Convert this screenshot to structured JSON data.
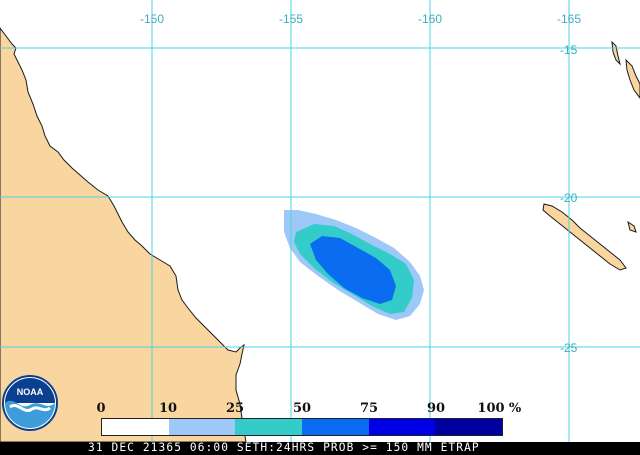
{
  "map": {
    "land_color": "#f9d5a0",
    "ocean_color": "#ffffff",
    "grid_color": "#4fd3e0",
    "longitude_labels": [
      "-150",
      "-155",
      "-160",
      "-165"
    ],
    "latitude_labels": [
      "-15",
      "-20",
      "-25"
    ]
  },
  "legend": {
    "tick_labels": [
      "0",
      "10",
      "25",
      "50",
      "75",
      "90",
      "100",
      "%"
    ],
    "colors": [
      "#ffffff",
      "#9ec8f8",
      "#33ccc8",
      "#0a6cf0",
      "#0000e6",
      "#0000a0"
    ]
  },
  "footer": {
    "text": "31 DEC 21365 06:00 SETH:24HRS PROB >= 150 MM ETRAP"
  },
  "logo": {
    "text": "NOAA"
  }
}
